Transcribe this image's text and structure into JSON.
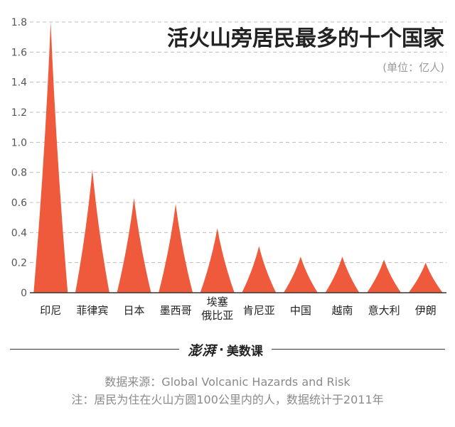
{
  "chart_data": {
    "type": "bar",
    "title": "活火山旁居民最多的十个国家",
    "unit": "(单位：亿人)",
    "categories": [
      "印尼",
      "菲律宾",
      "日本",
      "墨西哥",
      "埃塞\n俄比亚",
      "肯尼亚",
      "中国",
      "越南",
      "意大利",
      "伊朗"
    ],
    "values": [
      1.8,
      0.82,
      0.63,
      0.59,
      0.43,
      0.31,
      0.24,
      0.24,
      0.22,
      0.2
    ],
    "ylim": [
      0,
      1.8
    ],
    "yticks": [
      "0",
      "0.2",
      "0.4",
      "0.6",
      "0.8",
      "1.0",
      "1.2",
      "1.4",
      "1.6",
      "1.8"
    ],
    "grid": true,
    "color": "#ef5a3c"
  },
  "footer": {
    "logo_brand": "澎湃",
    "logo_column": "美数课",
    "source": "数据来源：Global Volcanic Hazards and Risk",
    "note": "注：居民为住在火山方圆100公里内的人，数据统计于2011年"
  }
}
